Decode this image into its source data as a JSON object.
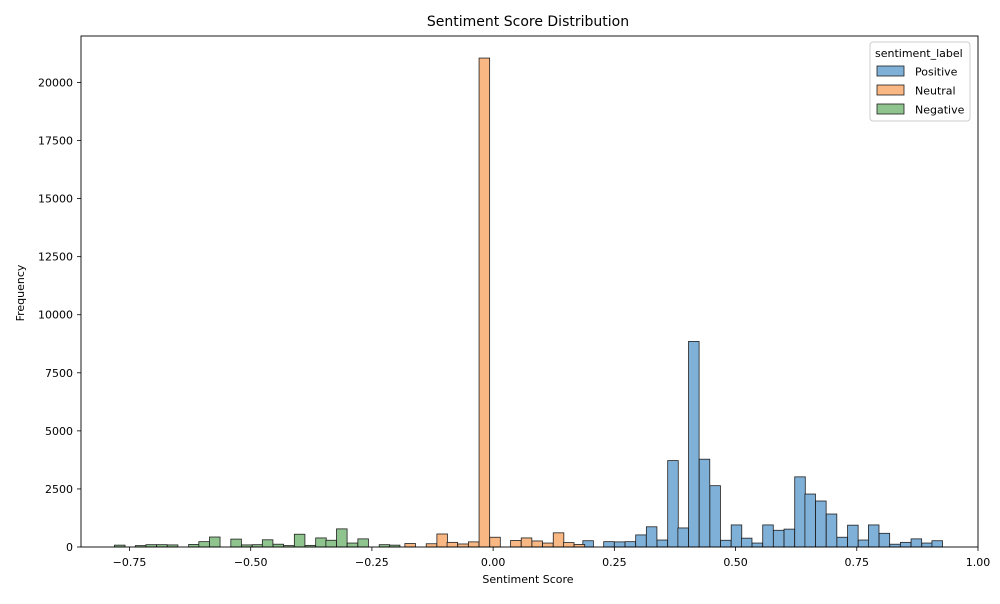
{
  "chart_data": {
    "type": "histogram",
    "title": "Sentiment Score Distribution",
    "xlabel": "Sentiment Score",
    "ylabel": "Frequency",
    "xlim": [
      -0.85,
      1.0
    ],
    "ylim": [
      0,
      22000
    ],
    "xticks": [
      -0.75,
      -0.5,
      -0.25,
      0.0,
      0.25,
      0.5,
      0.75,
      1.0
    ],
    "xtick_labels": [
      "−0.75",
      "−0.50",
      "−0.25",
      "0.00",
      "0.25",
      "0.50",
      "0.75",
      "1.00"
    ],
    "yticks": [
      0,
      2500,
      5000,
      7500,
      10000,
      12500,
      15000,
      17500,
      20000
    ],
    "ytick_labels": [
      "0",
      "2500",
      "5000",
      "7500",
      "10000",
      "12500",
      "15000",
      "17500",
      "20000"
    ],
    "bin_width": 0.0218,
    "grid": false,
    "legend": {
      "title": "sentiment_label",
      "position": "top-right"
    },
    "series": [
      {
        "name": "Positive",
        "color": "#7fb0d8",
        "edge": "#1f1f1f",
        "bins": [
          {
            "x": 0.185,
            "v": 270
          },
          {
            "x": 0.228,
            "v": 230
          },
          {
            "x": 0.25,
            "v": 220
          },
          {
            "x": 0.272,
            "v": 230
          },
          {
            "x": 0.294,
            "v": 520
          },
          {
            "x": 0.316,
            "v": 870
          },
          {
            "x": 0.338,
            "v": 300
          },
          {
            "x": 0.36,
            "v": 3720
          },
          {
            "x": 0.381,
            "v": 820
          },
          {
            "x": 0.403,
            "v": 8850
          },
          {
            "x": 0.425,
            "v": 3780
          },
          {
            "x": 0.447,
            "v": 2640
          },
          {
            "x": 0.469,
            "v": 290
          },
          {
            "x": 0.491,
            "v": 950
          },
          {
            "x": 0.512,
            "v": 380
          },
          {
            "x": 0.534,
            "v": 170
          },
          {
            "x": 0.556,
            "v": 950
          },
          {
            "x": 0.578,
            "v": 720
          },
          {
            "x": 0.6,
            "v": 770
          },
          {
            "x": 0.622,
            "v": 3020
          },
          {
            "x": 0.643,
            "v": 2280
          },
          {
            "x": 0.665,
            "v": 1980
          },
          {
            "x": 0.687,
            "v": 1420
          },
          {
            "x": 0.709,
            "v": 420
          },
          {
            "x": 0.731,
            "v": 940
          },
          {
            "x": 0.753,
            "v": 300
          },
          {
            "x": 0.774,
            "v": 950
          },
          {
            "x": 0.796,
            "v": 590
          },
          {
            "x": 0.818,
            "v": 120
          },
          {
            "x": 0.84,
            "v": 200
          },
          {
            "x": 0.862,
            "v": 350
          },
          {
            "x": 0.884,
            "v": 170
          },
          {
            "x": 0.905,
            "v": 270
          }
        ]
      },
      {
        "name": "Neutral",
        "color": "#f9b784",
        "edge": "#1f1f1f",
        "bins": [
          {
            "x": -0.182,
            "v": 150
          },
          {
            "x": -0.138,
            "v": 140
          },
          {
            "x": -0.116,
            "v": 560
          },
          {
            "x": -0.095,
            "v": 200
          },
          {
            "x": -0.073,
            "v": 130
          },
          {
            "x": -0.051,
            "v": 220
          },
          {
            "x": -0.029,
            "v": 21050
          },
          {
            "x": -0.007,
            "v": 420
          },
          {
            "x": 0.036,
            "v": 280
          },
          {
            "x": 0.058,
            "v": 390
          },
          {
            "x": 0.08,
            "v": 260
          },
          {
            "x": 0.102,
            "v": 170
          },
          {
            "x": 0.124,
            "v": 610
          },
          {
            "x": 0.145,
            "v": 190
          },
          {
            "x": 0.167,
            "v": 110
          }
        ]
      },
      {
        "name": "Negative",
        "color": "#8fc48f",
        "edge": "#1f1f1f",
        "bins": [
          {
            "x": -0.781,
            "v": 80
          },
          {
            "x": -0.738,
            "v": 60
          },
          {
            "x": -0.716,
            "v": 100
          },
          {
            "x": -0.694,
            "v": 100
          },
          {
            "x": -0.672,
            "v": 90
          },
          {
            "x": -0.628,
            "v": 110
          },
          {
            "x": -0.607,
            "v": 230
          },
          {
            "x": -0.585,
            "v": 430
          },
          {
            "x": -0.541,
            "v": 340
          },
          {
            "x": -0.519,
            "v": 90
          },
          {
            "x": -0.497,
            "v": 100
          },
          {
            "x": -0.476,
            "v": 310
          },
          {
            "x": -0.454,
            "v": 120
          },
          {
            "x": -0.432,
            "v": 60
          },
          {
            "x": -0.41,
            "v": 550
          },
          {
            "x": -0.388,
            "v": 70
          },
          {
            "x": -0.366,
            "v": 390
          },
          {
            "x": -0.345,
            "v": 290
          },
          {
            "x": -0.323,
            "v": 780
          },
          {
            "x": -0.301,
            "v": 170
          },
          {
            "x": -0.279,
            "v": 350
          },
          {
            "x": -0.235,
            "v": 100
          },
          {
            "x": -0.214,
            "v": 80
          }
        ]
      }
    ]
  }
}
